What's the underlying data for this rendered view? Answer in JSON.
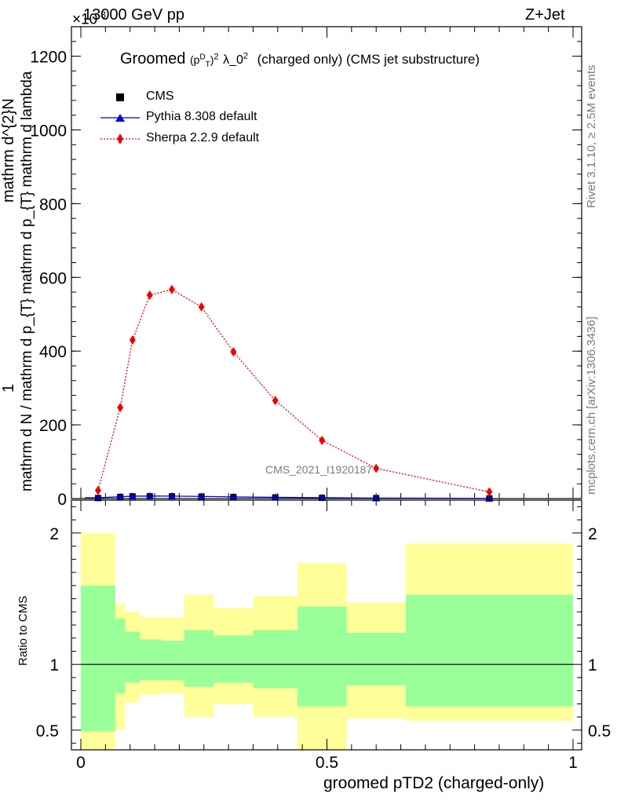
{
  "header": {
    "energy": "13000 GeV pp",
    "process": "Z+Jet",
    "exponent_prefix": "×10",
    "exponent": "-3"
  },
  "main_title": {
    "prefix": "Groomed",
    "p": "p",
    "p_sup": "D",
    "p_sub": "T",
    "square": "2",
    "lambda": "λ_0",
    "lambda_sup": "2",
    "suffix": "(charged only) (CMS jet substructure)"
  },
  "side_labels": {
    "rivet": "Rivet 3.1.10, ≥ 2.5M events",
    "mcplots": "mcplots.cern.ch [arXiv:1306.3436]",
    "analysis_id": "CMS_2021_I1920187"
  },
  "legend": [
    {
      "label": "CMS",
      "color": "#000000",
      "marker": "square",
      "line": "none"
    },
    {
      "label": "Pythia 8.308 default",
      "color": "#0000cc",
      "marker": "triangle",
      "line": "solid"
    },
    {
      "label": "Sherpa 2.2.9 default",
      "color": "#ee0000",
      "marker": "diamond",
      "line": "dotted"
    }
  ],
  "axes": {
    "y_upper_label_num": "1",
    "y_upper_label_den": "mathrm d N / mathrm d p_{T} mathrm d p_{T} mathrm d lambda",
    "y_upper_label_top": "mathrm d^{2}N",
    "y_lower_label": "Ratio to CMS",
    "x_label": "groomed pTD2 (charged-only)"
  },
  "chart_data": [
    {
      "type": "line",
      "panel": "main",
      "title": "Groomed (p_T^D)^2 λ_0^2 (charged only) (CMS jet substructure)",
      "xlabel": "groomed pTD2 (charged-only)",
      "xlim": [
        0,
        1
      ],
      "ylim": [
        0,
        1.28
      ],
      "y_scale_factor": "×10^-3",
      "yticks": [
        0,
        0.2,
        0.4,
        0.6,
        0.8,
        1.0,
        1.2
      ],
      "ytick_labels": [
        "0",
        "200",
        "400",
        "600",
        "800",
        "1000",
        "1200"
      ],
      "xticks": [
        0,
        0.5,
        1
      ],
      "xtick_labels": [
        "0",
        "0.5",
        "1"
      ],
      "series": [
        {
          "name": "CMS",
          "color": "#000000",
          "x": [
            0.035,
            0.08,
            0.105,
            0.14,
            0.185,
            0.245,
            0.31,
            0.395,
            0.49,
            0.6,
            0.83
          ],
          "y": [
            0.0015,
            0.0045,
            0.0058,
            0.0062,
            0.0061,
            0.0053,
            0.0042,
            0.003,
            0.002,
            0.0012,
            0.0004
          ]
        },
        {
          "name": "Pythia 8.308 default",
          "color": "#0000cc",
          "x": [
            0.035,
            0.08,
            0.105,
            0.14,
            0.185,
            0.245,
            0.31,
            0.395,
            0.49,
            0.6,
            0.83
          ],
          "y": [
            0.002,
            0.005,
            0.0065,
            0.0068,
            0.0066,
            0.0058,
            0.0046,
            0.0033,
            0.0023,
            0.0014,
            0.0005
          ]
        },
        {
          "name": "Sherpa 2.2.9 default",
          "color": "#ee0000",
          "x": [
            0.035,
            0.08,
            0.105,
            0.14,
            0.185,
            0.245,
            0.31,
            0.395,
            0.49,
            0.6,
            0.83
          ],
          "y": [
            0.022,
            0.247,
            0.43,
            0.552,
            0.567,
            0.52,
            0.398,
            0.266,
            0.158,
            0.082,
            0.018
          ]
        }
      ]
    },
    {
      "type": "area",
      "panel": "ratio",
      "ylabel": "Ratio to CMS",
      "xlabel": "groomed pTD2 (charged-only)",
      "xlim": [
        0,
        1
      ],
      "ylim": [
        0.35,
        2.25
      ],
      "yticks": [
        0.5,
        1,
        2
      ],
      "ytick_labels": [
        "0.5",
        "1",
        "2"
      ],
      "xticks": [
        0,
        0.5,
        1
      ],
      "xtick_labels": [
        "0",
        "0.5",
        "1"
      ],
      "reference": 1,
      "bins": [
        {
          "x0": 0.0,
          "x1": 0.07,
          "stat_lo": 0.49,
          "stat_hi": 1.6,
          "tot_lo": 0.35,
          "tot_hi": 2.0
        },
        {
          "x0": 0.07,
          "x1": 0.09,
          "stat_lo": 0.78,
          "stat_hi": 1.35,
          "tot_lo": 0.5,
          "tot_hi": 1.46
        },
        {
          "x0": 0.09,
          "x1": 0.12,
          "stat_lo": 0.86,
          "stat_hi": 1.25,
          "tot_lo": 0.71,
          "tot_hi": 1.4
        },
        {
          "x0": 0.12,
          "x1": 0.165,
          "stat_lo": 0.88,
          "stat_hi": 1.19,
          "tot_lo": 0.77,
          "tot_hi": 1.36
        },
        {
          "x0": 0.165,
          "x1": 0.21,
          "stat_lo": 0.88,
          "stat_hi": 1.18,
          "tot_lo": 0.78,
          "tot_hi": 1.36
        },
        {
          "x0": 0.21,
          "x1": 0.27,
          "stat_lo": 0.83,
          "stat_hi": 1.26,
          "tot_lo": 0.6,
          "tot_hi": 1.53
        },
        {
          "x0": 0.27,
          "x1": 0.35,
          "stat_lo": 0.86,
          "stat_hi": 1.22,
          "tot_lo": 0.7,
          "tot_hi": 1.43
        },
        {
          "x0": 0.35,
          "x1": 0.44,
          "stat_lo": 0.82,
          "stat_hi": 1.26,
          "tot_lo": 0.6,
          "tot_hi": 1.52
        },
        {
          "x0": 0.44,
          "x1": 0.54,
          "stat_lo": 0.68,
          "stat_hi": 1.44,
          "tot_lo": 0.35,
          "tot_hi": 1.77
        },
        {
          "x0": 0.54,
          "x1": 0.66,
          "stat_lo": 0.84,
          "stat_hi": 1.24,
          "tot_lo": 0.59,
          "tot_hi": 1.47
        },
        {
          "x0": 0.66,
          "x1": 1.0,
          "stat_lo": 0.68,
          "stat_hi": 1.53,
          "tot_lo": 0.57,
          "tot_hi": 1.92
        }
      ],
      "stat_color": "#99ff99",
      "tot_color": "#ffff99"
    }
  ]
}
